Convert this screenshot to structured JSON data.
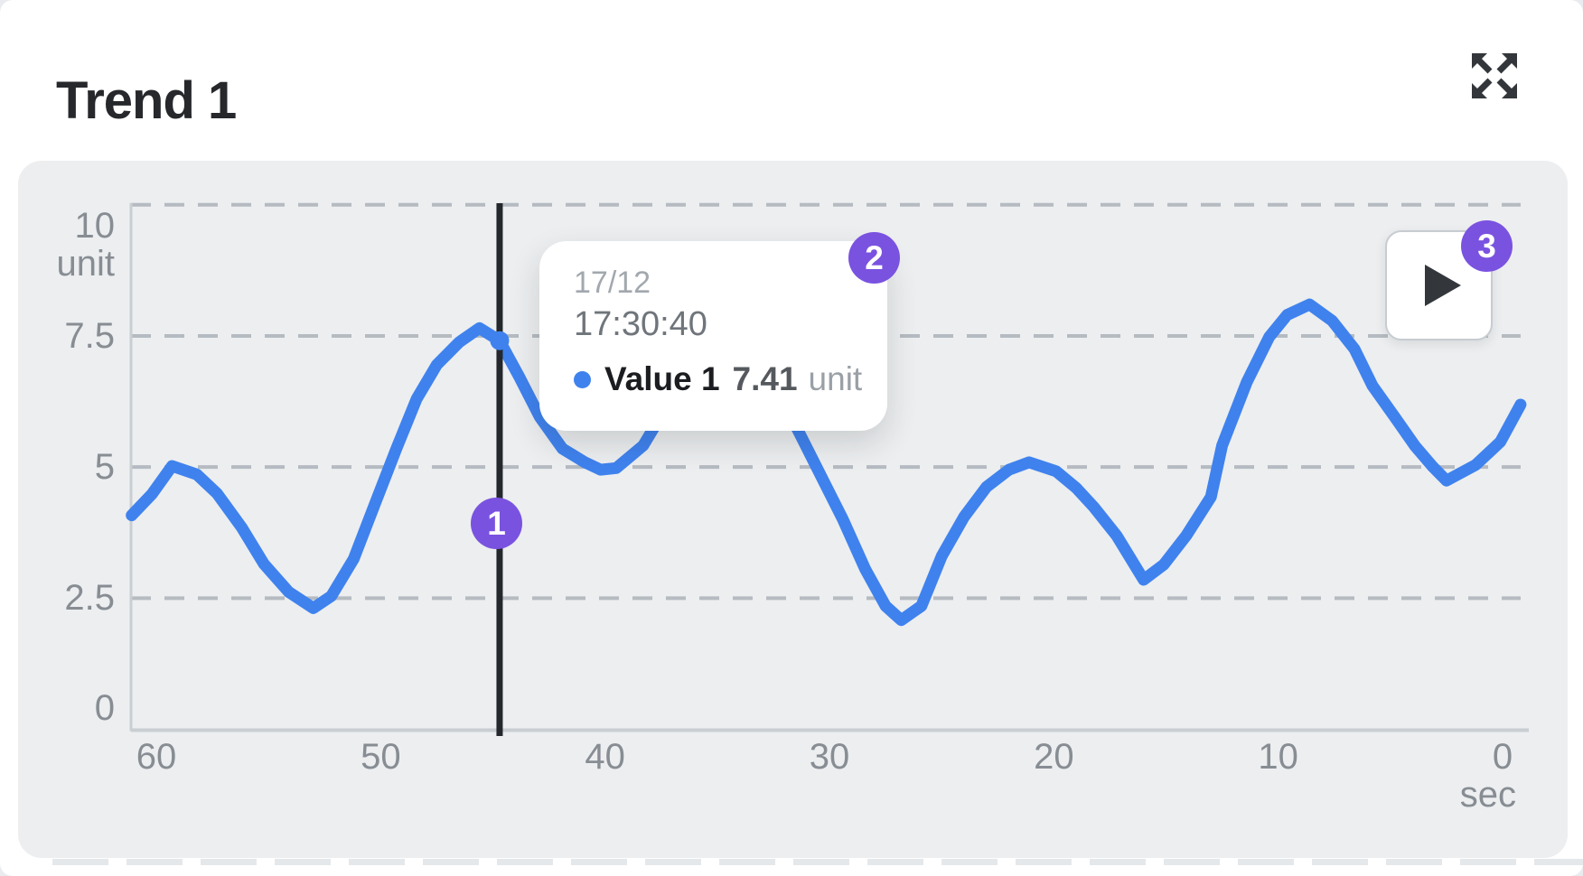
{
  "card": {
    "title": "Trend 1"
  },
  "annotations": {
    "badge1": "1",
    "badge2": "2",
    "badge3": "3"
  },
  "colors": {
    "series_blue": "#3f82ee",
    "cursor_dark": "#24282c",
    "badge_purple": "#7a52e0",
    "panel_bg": "#eceef0",
    "grid_gray": "#b5bbc1",
    "axis_gray": "#c9ced3",
    "tick_text": "#878d93"
  },
  "chart_data": {
    "type": "line",
    "title": "Trend 1",
    "xlabel": "sec",
    "ylabel": "unit",
    "x_ticks": [
      60,
      50,
      40,
      30,
      20,
      10,
      0
    ],
    "y_ticks": [
      10,
      7.5,
      5,
      2.5,
      0
    ],
    "x_range_seconds_ago": [
      61.1,
      -0.8
    ],
    "ylim": [
      0,
      10
    ],
    "grid": "horizontal dashed",
    "legend_position": "none",
    "series": [
      {
        "name": "Value 1",
        "unit": "unit",
        "color": "#3f82ee",
        "points": [
          [
            61.1,
            4.08
          ],
          [
            60.2,
            4.48
          ],
          [
            59.3,
            5.02
          ],
          [
            58.2,
            4.86
          ],
          [
            57.3,
            4.5
          ],
          [
            56.2,
            3.85
          ],
          [
            55.2,
            3.15
          ],
          [
            54.1,
            2.62
          ],
          [
            53.0,
            2.31
          ],
          [
            52.2,
            2.54
          ],
          [
            51.2,
            3.25
          ],
          [
            50.3,
            4.25
          ],
          [
            49.3,
            5.35
          ],
          [
            48.4,
            6.3
          ],
          [
            47.5,
            6.95
          ],
          [
            46.5,
            7.38
          ],
          [
            45.6,
            7.65
          ],
          [
            44.7,
            7.41
          ],
          [
            43.8,
            6.7
          ],
          [
            42.9,
            5.95
          ],
          [
            41.9,
            5.35
          ],
          [
            40.9,
            5.09
          ],
          [
            40.2,
            4.95
          ],
          [
            39.5,
            4.98
          ],
          [
            38.3,
            5.41
          ],
          [
            37.4,
            6.05
          ],
          [
            36.4,
            6.75
          ],
          [
            35.4,
            7.25
          ],
          [
            34.4,
            7.45
          ],
          [
            33.4,
            7.15
          ],
          [
            32.4,
            6.5
          ],
          [
            31.4,
            5.7
          ],
          [
            30.4,
            4.85
          ],
          [
            29.4,
            4.0
          ],
          [
            28.4,
            3.05
          ],
          [
            27.5,
            2.35
          ],
          [
            26.8,
            2.08
          ],
          [
            25.9,
            2.35
          ],
          [
            25.0,
            3.3
          ],
          [
            24.0,
            4.05
          ],
          [
            23.0,
            4.62
          ],
          [
            22.0,
            4.95
          ],
          [
            21.1,
            5.09
          ],
          [
            19.9,
            4.92
          ],
          [
            19.0,
            4.6
          ],
          [
            18.2,
            4.23
          ],
          [
            17.2,
            3.69
          ],
          [
            16.0,
            2.85
          ],
          [
            15.1,
            3.14
          ],
          [
            14.1,
            3.69
          ],
          [
            13.0,
            4.43
          ],
          [
            12.5,
            5.41
          ],
          [
            11.4,
            6.62
          ],
          [
            10.4,
            7.48
          ],
          [
            9.6,
            7.9
          ],
          [
            8.6,
            8.1
          ],
          [
            7.6,
            7.79
          ],
          [
            6.6,
            7.25
          ],
          [
            5.8,
            6.55
          ],
          [
            4.8,
            5.95
          ],
          [
            3.9,
            5.4
          ],
          [
            3.1,
            5.0
          ],
          [
            2.5,
            4.74
          ],
          [
            1.2,
            5.04
          ],
          [
            0.1,
            5.48
          ],
          [
            -0.8,
            6.19
          ]
        ]
      }
    ],
    "cursor": {
      "seconds_ago": 44.7,
      "value": 7.41
    },
    "tooltip": {
      "date": "17/12",
      "time": "17:30:40",
      "series": "Value 1",
      "value": "7.41",
      "unit": "unit"
    }
  }
}
